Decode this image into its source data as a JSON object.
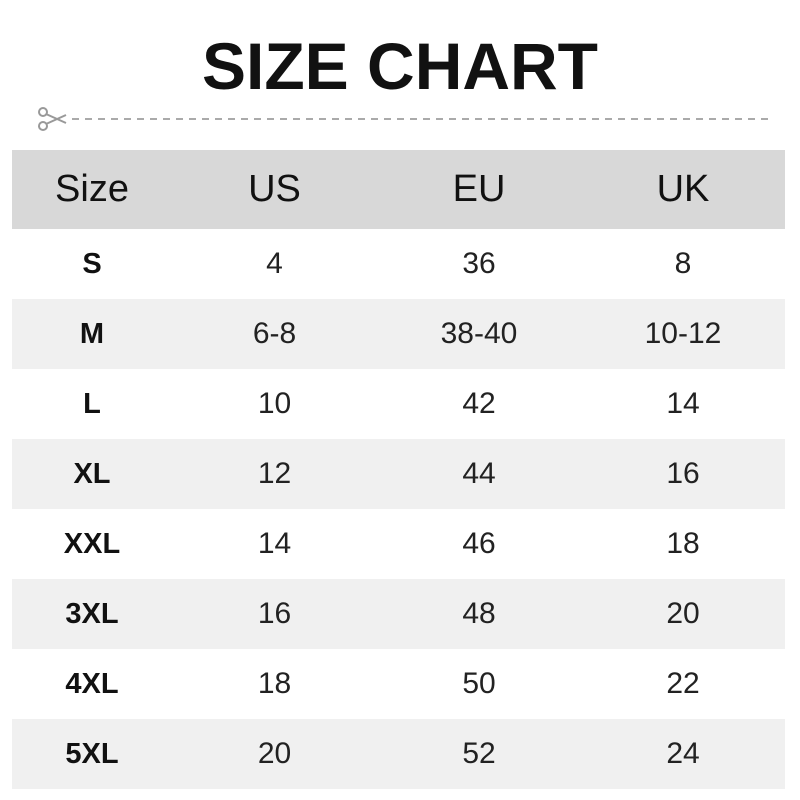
{
  "title": "SIZE CHART",
  "cut_icon": "scissors-icon",
  "colors": {
    "header_bg": "#d8d8d8",
    "alt_row_bg": "#f0f0f0",
    "dashed_line": "#aaaaaa"
  },
  "table": {
    "headers": [
      "Size",
      "US",
      "EU",
      "UK"
    ],
    "rows": [
      [
        "S",
        "4",
        "36",
        "8"
      ],
      [
        "M",
        "6-8",
        "38-40",
        "10-12"
      ],
      [
        "L",
        "10",
        "42",
        "14"
      ],
      [
        "XL",
        "12",
        "44",
        "16"
      ],
      [
        "XXL",
        "14",
        "46",
        "18"
      ],
      [
        "3XL",
        "16",
        "48",
        "20"
      ],
      [
        "4XL",
        "18",
        "50",
        "22"
      ],
      [
        "5XL",
        "20",
        "52",
        "24"
      ]
    ]
  }
}
